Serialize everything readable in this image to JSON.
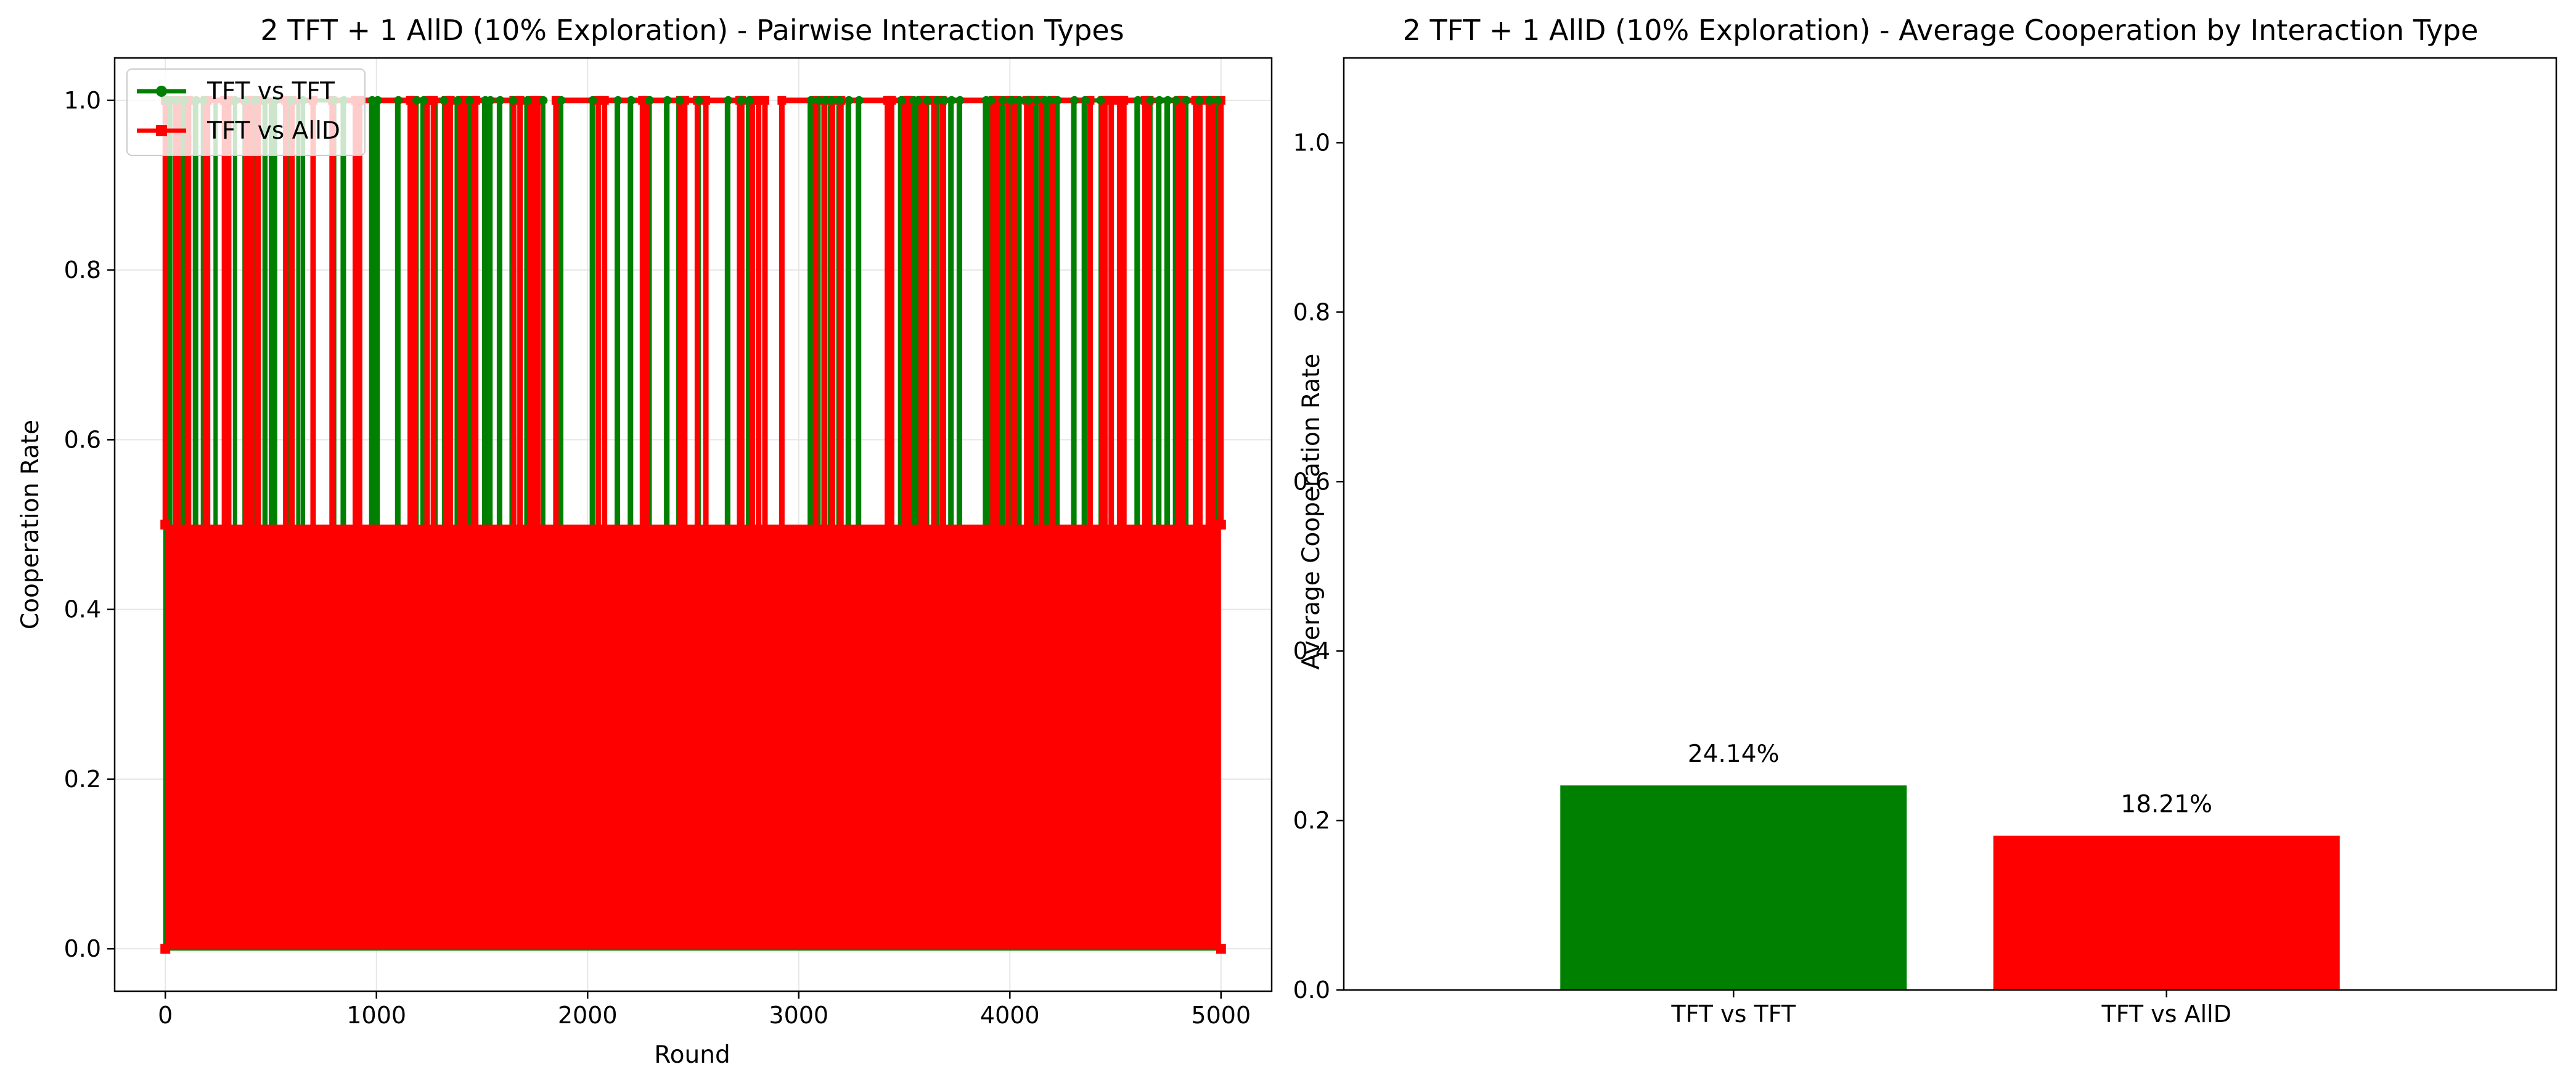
{
  "figure": {
    "background": "#ffffff"
  },
  "chart_data": [
    {
      "type": "line",
      "title": "2 TFT + 1 AllD (10% Exploration) - Pairwise Interaction Types",
      "xlabel": "Round",
      "ylabel": "Cooperation Rate",
      "xlim": [
        -240,
        5240
      ],
      "ylim": [
        -0.05,
        1.05
      ],
      "xticks": [
        0,
        1000,
        2000,
        3000,
        4000,
        5000
      ],
      "xtick_labels": [
        "0",
        "1000",
        "2000",
        "3000",
        "4000",
        "5000"
      ],
      "yticks": [
        0.0,
        0.2,
        0.4,
        0.6,
        0.8,
        1.0
      ],
      "ytick_labels": [
        "0.0",
        "0.2",
        "0.4",
        "0.6",
        "0.8",
        "1.0"
      ],
      "grid": true,
      "legend_position": "top-left",
      "series": [
        {
          "name": "TFT vs TFT",
          "color": "#008000",
          "marker": "circle",
          "value_levels": [
            0.0,
            1.0
          ],
          "cooperation_intervals": [
            [
              0,
              6
            ],
            [
              20,
              24
            ],
            [
              48,
              52
            ],
            [
              83,
              90
            ],
            [
              140,
              146
            ],
            [
              178,
              184
            ],
            [
              238,
              330
            ],
            [
              375,
              380
            ],
            [
              420,
              426
            ],
            [
              470,
              474
            ],
            [
              500,
              520
            ],
            [
              588,
              594
            ],
            [
              630,
              652
            ],
            [
              700,
              800
            ],
            [
              840,
              846
            ],
            [
              975,
              980
            ],
            [
              1000,
              1006
            ],
            [
              1098,
              1104
            ],
            [
              1186,
              1190
            ],
            [
              1218,
              1224
            ],
            [
              1280,
              1320
            ],
            [
              1380,
              1386
            ],
            [
              1432,
              1440
            ],
            [
              1510,
              1516
            ],
            [
              1535,
              1540
            ],
            [
              1580,
              1586
            ],
            [
              1640,
              1646
            ],
            [
              1710,
              1716
            ],
            [
              1755,
              1790
            ],
            [
              1870,
              1875
            ],
            [
              2020,
              2024
            ],
            [
              2138,
              2144
            ],
            [
              2200,
              2206
            ],
            [
              2288,
              2294
            ],
            [
              2372,
              2378
            ],
            [
              2430,
              2436
            ],
            [
              2520,
              2526
            ],
            [
              2660,
              2666
            ],
            [
              2720,
              2726
            ],
            [
              2760,
              2766
            ],
            [
              3052,
              3058
            ],
            [
              3088,
              3094
            ],
            [
              3120,
              3126
            ],
            [
              3148,
              3154
            ],
            [
              3188,
              3194
            ],
            [
              3232,
              3238
            ],
            [
              3280,
              3286
            ],
            [
              3480,
              3486
            ],
            [
              3540,
              3546
            ],
            [
              3560,
              3566
            ],
            [
              3602,
              3608
            ],
            [
              3650,
              3656
            ],
            [
              3682,
              3688
            ],
            [
              3718,
              3724
            ],
            [
              3758,
              3764
            ],
            [
              3882,
              3888
            ],
            [
              3905,
              3910
            ],
            [
              3960,
              3966
            ],
            [
              4002,
              4008
            ],
            [
              4040,
              4046
            ],
            [
              4080,
              4086
            ],
            [
              4120,
              4126
            ],
            [
              4160,
              4166
            ],
            [
              4180,
              4186
            ],
            [
              4220,
              4226
            ],
            [
              4300,
              4306
            ],
            [
              4350,
              4356
            ],
            [
              4380,
              4430
            ],
            [
              4600,
              4606
            ],
            [
              4660,
              4666
            ],
            [
              4702,
              4708
            ],
            [
              4742,
              4748
            ],
            [
              4782,
              4788
            ],
            [
              4830,
              4836
            ],
            [
              4890,
              4896
            ],
            [
              4940,
              4946
            ],
            [
              4980,
              4986
            ]
          ]
        },
        {
          "name": "TFT vs AllD",
          "color": "#ff0000",
          "marker": "square",
          "value_levels": [
            0.0,
            0.5,
            1.0
          ],
          "cooperation_intervals": [
            [
              0,
              50
            ],
            [
              60,
              105
            ],
            [
              110,
              190
            ],
            [
              200,
              280
            ],
            [
              300,
              380
            ],
            [
              395,
              410
            ],
            [
              440,
              570
            ],
            [
              600,
              700
            ],
            [
              790,
              900
            ],
            [
              920,
              1160
            ],
            [
              1180,
              1240
            ],
            [
              1270,
              1330
            ],
            [
              1350,
              1400
            ],
            [
              1420,
              1460
            ],
            [
              1470,
              1650
            ],
            [
              1680,
              1730
            ],
            [
              1745,
              1765
            ],
            [
              1850,
              2050
            ],
            [
              2080,
              2260
            ],
            [
              2280,
              2440
            ],
            [
              2460,
              2520
            ],
            [
              2560,
              2720
            ],
            [
              2730,
              2780
            ],
            [
              2810,
              2840
            ],
            [
              2920,
              3080
            ],
            [
              3120,
              3160
            ],
            [
              3200,
              3420
            ],
            [
              3440,
              3500
            ],
            [
              3520,
              3580
            ],
            [
              3600,
              3640
            ],
            [
              3680,
              3920
            ],
            [
              3940,
              3990
            ],
            [
              4020,
              4080
            ],
            [
              4100,
              4150
            ],
            [
              4200,
              4380
            ],
            [
              4440,
              4450
            ],
            [
              4480,
              4520
            ],
            [
              4540,
              4640
            ],
            [
              4660,
              4800
            ],
            [
              4820,
              4880
            ],
            [
              4900,
              4940
            ],
            [
              4960,
              5000
            ]
          ]
        }
      ]
    },
    {
      "type": "bar",
      "title": "2 TFT + 1 AllD (10% Exploration) - Average Cooperation by Interaction Type",
      "xlabel": "",
      "ylabel": "Average Cooperation Rate",
      "ylim": [
        0,
        1.1
      ],
      "yticks": [
        0.0,
        0.2,
        0.4,
        0.6,
        0.8,
        1.0
      ],
      "ytick_labels": [
        "0.0",
        "0.2",
        "0.4",
        "0.6",
        "0.8",
        "1.0"
      ],
      "categories": [
        "TFT vs TFT",
        "TFT vs AllD"
      ],
      "values": [
        0.2414,
        0.1821
      ],
      "value_labels": [
        "24.14%",
        "18.21%"
      ],
      "colors": [
        "#008000",
        "#ff0000"
      ],
      "grid": false
    }
  ]
}
